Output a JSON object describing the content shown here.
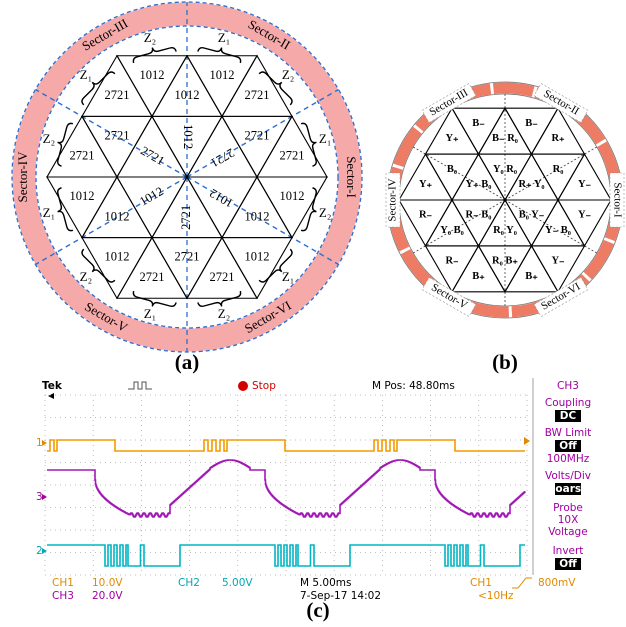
{
  "panel_a": {
    "caption": "(a)",
    "sectors": [
      "Sector-I",
      "Sector-II",
      "Sector-III",
      "Sector-IV",
      "Sector-V",
      "Sector-VI"
    ],
    "z_labels": [
      "Z₂",
      "Z₁",
      "Z₂",
      "Z₁",
      "Z₂",
      "Z₁",
      "Z₂",
      "Z₁",
      "Z₂",
      "Z₁",
      "Z₂",
      "Z₁"
    ],
    "cells": [
      "2721",
      "1012",
      "1012",
      "1012",
      "2721",
      "2721",
      "2721",
      "2721",
      "1012",
      "2721",
      "2721",
      "2721",
      "1012",
      "1012",
      "1012",
      "2721",
      "1012",
      "1012",
      "1012",
      "1012",
      "2721",
      "2721",
      "2721",
      "1012"
    ]
  },
  "panel_b": {
    "caption": "(b)",
    "sectors": [
      "Sector-I",
      "Sector-II",
      "Sector-III",
      "Sector-IV",
      "Sector-V",
      "Sector-VI"
    ],
    "cells": [
      "Y₊",
      "B₋",
      "B₋ R₀",
      "B₋",
      "R₊",
      "Y₊",
      "B₀",
      "Y₊ B₀",
      "Y₀ R₀",
      "R₊ Y₀",
      "R₀",
      "Y₋",
      "R₋",
      "Y₀ B₀",
      "R₋ B₀",
      "R₀ Y₀",
      "B₀ Y₋",
      "Y₋ B₀",
      "Y₋",
      "R₋",
      "B₊",
      "R₀ B₊",
      "B₊",
      "Y₋"
    ]
  },
  "panel_c": {
    "caption": "(c)",
    "header": {
      "brand": "Tek",
      "status": "Stop",
      "position": "M Pos: 48.80ms",
      "channel": "CH3"
    },
    "menu": [
      "Coupling",
      "DC",
      "BW Limit",
      "Off",
      "100MHz",
      "Volts/Div",
      "Coarse",
      "Probe",
      "10X",
      "Voltage",
      "Invert",
      "Off"
    ],
    "menu_boxed": [
      false,
      true,
      false,
      true,
      false,
      false,
      true,
      false,
      false,
      false,
      false,
      true
    ],
    "markers": [
      "1",
      "3",
      "2"
    ],
    "footer": {
      "ch1": "CH1",
      "ch1_scale": "10.0V",
      "ch2": "CH2",
      "ch2_scale": "5.00V",
      "timebase": "M 5.00ms",
      "trigger_source": "CH1",
      "trigger_level": "800mV",
      "ch3": "CH3",
      "ch3_scale": "20.0V",
      "date": "7-Sep-17 14:02",
      "frequency": "<10Hz"
    }
  }
}
